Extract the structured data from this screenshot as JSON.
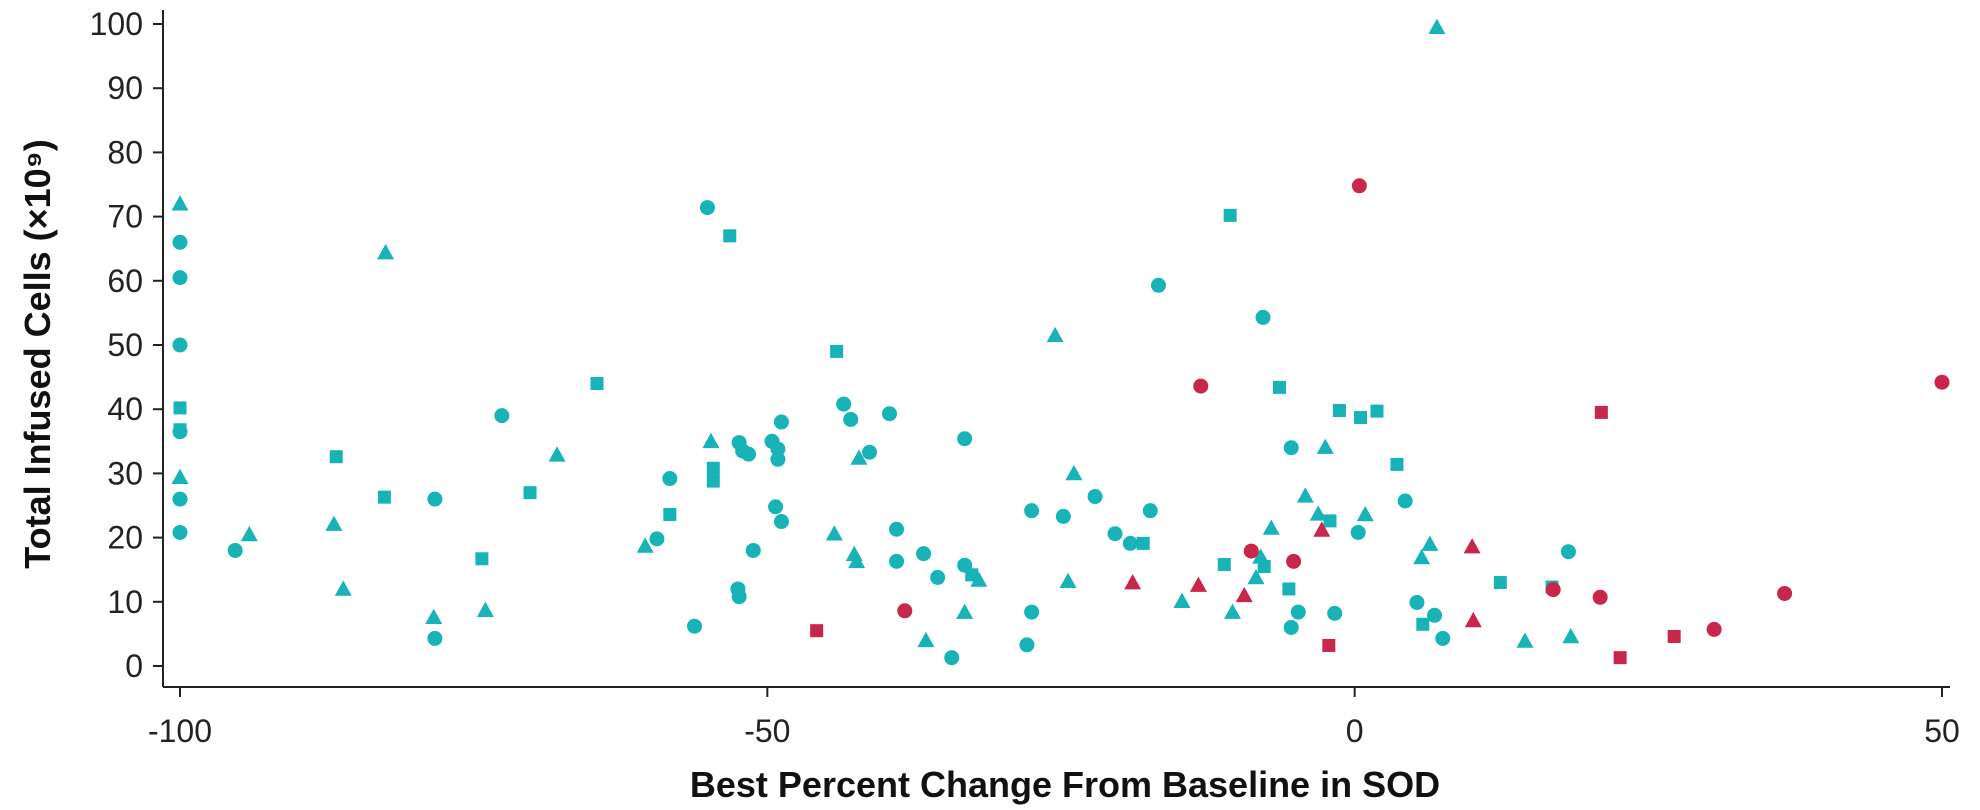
{
  "colors": {
    "teal": "#17b3b6",
    "red": "#c8264a",
    "axis": "#222222"
  },
  "chart_data": {
    "type": "scatter",
    "title": "",
    "xlabel": "Best Percent Change From Baseline in SOD",
    "ylabel": "Total Infused Cells (×10⁹)",
    "xlim": [
      -100,
      50
    ],
    "ylim": [
      0,
      100
    ],
    "x_ticks": [
      {
        "value": -100,
        "label": "-100"
      },
      {
        "value": -50,
        "label": "-50"
      },
      {
        "value": 0,
        "label": "0"
      },
      {
        "value": 50,
        "label": "50"
      }
    ],
    "y_ticks": [
      {
        "value": 0,
        "label": "0"
      },
      {
        "value": 10,
        "label": "10"
      },
      {
        "value": 20,
        "label": "20"
      },
      {
        "value": 30,
        "label": "30"
      },
      {
        "value": 40,
        "label": "40"
      },
      {
        "value": 50,
        "label": "50"
      },
      {
        "value": 60,
        "label": "60"
      },
      {
        "value": 70,
        "label": "70"
      },
      {
        "value": 80,
        "label": "80"
      },
      {
        "value": 90,
        "label": "90"
      },
      {
        "value": 100,
        "label": "100"
      }
    ],
    "grid": false,
    "legend": "none",
    "series": [
      {
        "marker": "circle",
        "color": "#17b3b6",
        "points": [
          [
            -100,
            66
          ],
          [
            -100,
            60.5
          ],
          [
            -100,
            50
          ],
          [
            -100,
            36.5
          ],
          [
            -100,
            26
          ],
          [
            -100,
            20.8
          ],
          [
            -95.3,
            18
          ],
          [
            -78.3,
            26
          ],
          [
            -78.3,
            4.3
          ],
          [
            -72.6,
            39
          ],
          [
            -58.3,
            29.2
          ],
          [
            -59.4,
            19.8
          ],
          [
            -56.2,
            6.2
          ],
          [
            -55.1,
            71.4
          ],
          [
            -52.4,
            34.8
          ],
          [
            -52.1,
            33.5
          ],
          [
            -51.6,
            33
          ],
          [
            -52.5,
            12
          ],
          [
            -52.4,
            10.8
          ],
          [
            -51.2,
            18
          ],
          [
            -49.6,
            35
          ],
          [
            -49.1,
            33.8
          ],
          [
            -49.1,
            32.2
          ],
          [
            -48.8,
            38
          ],
          [
            -49.3,
            24.8
          ],
          [
            -48.8,
            22.5
          ],
          [
            -43.5,
            40.8
          ],
          [
            -42.9,
            38.4
          ],
          [
            -41.3,
            33.3
          ],
          [
            -39.6,
            39.3
          ],
          [
            -39,
            21.3
          ],
          [
            -39,
            16.3
          ],
          [
            -36.7,
            17.5
          ],
          [
            -35.5,
            13.8
          ],
          [
            -34.3,
            1.3
          ],
          [
            -33.2,
            35.4
          ],
          [
            -33.2,
            15.7
          ],
          [
            -27.5,
            24.2
          ],
          [
            -27.5,
            8.4
          ],
          [
            -27.9,
            3.3
          ],
          [
            -24.8,
            23.3
          ],
          [
            -22.1,
            26.4
          ],
          [
            -20.4,
            20.6
          ],
          [
            -19.1,
            19.1
          ],
          [
            -17.4,
            24.2
          ],
          [
            -16.7,
            59.3
          ],
          [
            -7.8,
            54.3
          ],
          [
            -5.4,
            34
          ],
          [
            -5.4,
            6
          ],
          [
            -4.8,
            8.4
          ],
          [
            -1.7,
            8.2
          ],
          [
            0.3,
            20.8
          ],
          [
            4.3,
            25.7
          ],
          [
            5.3,
            9.9
          ],
          [
            6.8,
            7.9
          ],
          [
            7.5,
            4.3
          ],
          [
            18.2,
            17.8
          ]
        ]
      },
      {
        "marker": "square",
        "color": "#17b3b6",
        "points": [
          [
            -100,
            40.2
          ],
          [
            -100,
            36.8
          ],
          [
            -86.7,
            32.6
          ],
          [
            -82.6,
            26.3
          ],
          [
            -74.3,
            16.7
          ],
          [
            -70.2,
            27
          ],
          [
            -64.5,
            44
          ],
          [
            -58.3,
            23.6
          ],
          [
            -54.6,
            30.8
          ],
          [
            -54.6,
            28.8
          ],
          [
            -53.2,
            67
          ],
          [
            -44.1,
            49
          ],
          [
            -32.6,
            14.2
          ],
          [
            -18,
            19.1
          ],
          [
            -11.1,
            15.8
          ],
          [
            -10.6,
            70.2
          ],
          [
            -7.7,
            15.5
          ],
          [
            -6.4,
            43.4
          ],
          [
            -5.6,
            12
          ],
          [
            -2.1,
            22.6
          ],
          [
            -1.3,
            39.8
          ],
          [
            0.5,
            38.7
          ],
          [
            1.9,
            39.7
          ],
          [
            3.6,
            31.4
          ],
          [
            5.8,
            6.5
          ],
          [
            12.4,
            13
          ],
          [
            16.8,
            12.3
          ]
        ]
      },
      {
        "marker": "triangle",
        "color": "#17b3b6",
        "points": [
          [
            -100,
            72
          ],
          [
            -100,
            29.4
          ],
          [
            -82.5,
            64.4
          ],
          [
            -94.1,
            20.5
          ],
          [
            -86.9,
            22.1
          ],
          [
            -86.1,
            12
          ],
          [
            -78.4,
            7.6
          ],
          [
            -74,
            8.7
          ],
          [
            -67.9,
            32.9
          ],
          [
            -60.4,
            18.7
          ],
          [
            -54.8,
            35
          ],
          [
            -44.3,
            20.6
          ],
          [
            -42.6,
            17.4
          ],
          [
            -42.4,
            16.3
          ],
          [
            -42.2,
            32.4
          ],
          [
            -36.5,
            4
          ],
          [
            -33.2,
            8.4
          ],
          [
            -32,
            13.4
          ],
          [
            -25.5,
            51.5
          ],
          [
            -24.4,
            13.2
          ],
          [
            -23.9,
            30
          ],
          [
            -14.7,
            10.1
          ],
          [
            -10.4,
            8.4
          ],
          [
            -8.4,
            13.8
          ],
          [
            -8,
            17
          ],
          [
            -7.1,
            21.5
          ],
          [
            -4.2,
            26.5
          ],
          [
            -3.1,
            23.7
          ],
          [
            -2.5,
            34.1
          ],
          [
            0.9,
            23.6
          ],
          [
            5.7,
            16.9
          ],
          [
            6.4,
            19
          ],
          [
            7,
            99.5
          ],
          [
            14.5,
            3.9
          ],
          [
            18.4,
            4.6
          ]
        ]
      },
      {
        "marker": "circle",
        "color": "#c8264a",
        "points": [
          [
            0.4,
            74.8
          ],
          [
            -13.1,
            43.6
          ],
          [
            -8.8,
            17.9
          ],
          [
            -5.2,
            16.3
          ],
          [
            -38.3,
            8.6
          ],
          [
            16.9,
            11.9
          ],
          [
            20.9,
            10.7
          ],
          [
            30.6,
            5.7
          ],
          [
            36.6,
            11.3
          ],
          [
            50,
            44.2
          ]
        ]
      },
      {
        "marker": "square",
        "color": "#c8264a",
        "points": [
          [
            -45.8,
            5.5
          ],
          [
            -2.2,
            3.2
          ],
          [
            21,
            39.5
          ],
          [
            22.6,
            1.3
          ],
          [
            27.2,
            4.6
          ]
        ]
      },
      {
        "marker": "triangle",
        "color": "#c8264a",
        "points": [
          [
            -18.9,
            13
          ],
          [
            -13.3,
            12.6
          ],
          [
            -9.4,
            11
          ],
          [
            -2.8,
            21.2
          ],
          [
            10,
            18.6
          ],
          [
            10.1,
            7.1
          ]
        ]
      }
    ]
  }
}
